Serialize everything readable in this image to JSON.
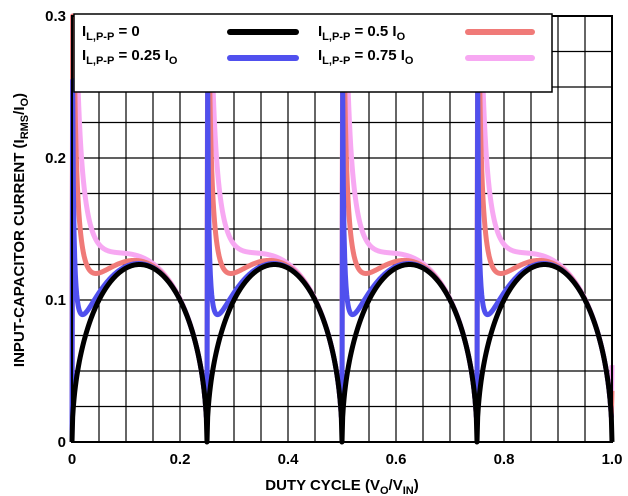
{
  "chart_data": {
    "type": "line",
    "title": "",
    "xlabel": {
      "main": "DUTY CYCLE (V",
      "sub1": "O",
      "mid": "/V",
      "sub2": "IN",
      "end": ")"
    },
    "ylabel": {
      "main": "INPUT-CAPACITOR CURRENT (I",
      "sub1": "RMS",
      "mid": "/I",
      "sub2": "O",
      "end": ")"
    },
    "xlim": [
      0,
      1.0
    ],
    "ylim": [
      0,
      0.3
    ],
    "x_ticks": [
      "0",
      "0.2",
      "0.4",
      "0.6",
      "0.8",
      "1.0"
    ],
    "x_tick_values": [
      0,
      0.2,
      0.4,
      0.6,
      0.8,
      1.0
    ],
    "y_ticks": [
      "0",
      "0.1",
      "0.2",
      "0.3"
    ],
    "y_tick_values": [
      0,
      0.1,
      0.2,
      0.3
    ],
    "grid": true,
    "legend_position": "top",
    "series": [
      {
        "name": "I_L,P-P = 0",
        "legend": {
          "main": "I",
          "sub": "L,P-P",
          "rest": " = 0"
        },
        "color": "#000000",
        "ripple_ratio": 0
      },
      {
        "name": "I_L,P-P = 0.25 I_O",
        "legend": {
          "main": "I",
          "sub": "L,P-P",
          "rest": " = 0.25 I",
          "sub2": "O"
        },
        "color": "#5050ee",
        "ripple_ratio": 0.25
      },
      {
        "name": "I_L,P-P = 0.5 I_O",
        "legend": {
          "main": "I",
          "sub": "L,P-P",
          "rest": " = 0.5 I",
          "sub2": "O"
        },
        "color": "#f07a78",
        "ripple_ratio": 0.5
      },
      {
        "name": "I_L,P-P = 0.75 I_O",
        "legend": {
          "main": "I",
          "sub": "L,P-P",
          "rest": " = 0.75 I",
          "sub2": "O"
        },
        "color": "#f7a8f2",
        "ripple_ratio": 0.75
      }
    ]
  }
}
